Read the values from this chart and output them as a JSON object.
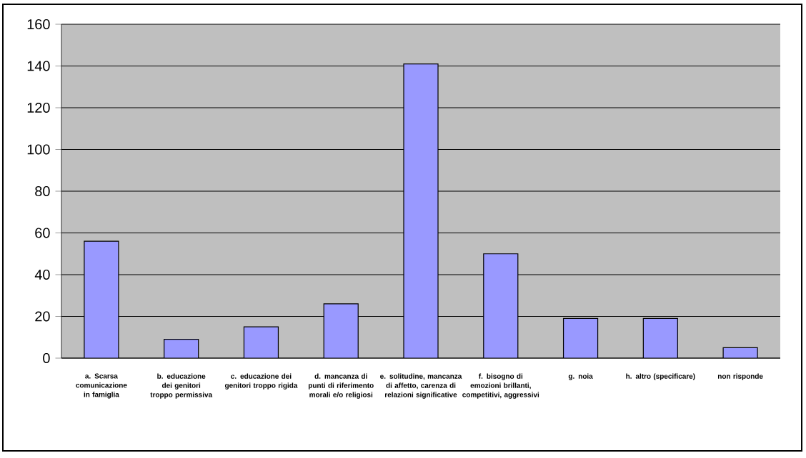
{
  "chart_data": {
    "type": "bar",
    "categories": [
      "a. Scarsa comunicazione in famiglia",
      "b. educazione dei genitori troppo permissiva",
      "c. educazione dei genitori troppo rigida",
      "d. mancanza di punti di riferimento morali e/o religiosi",
      "e. solitudine, mancanza di affetto, carenza di relazioni significative",
      "f. bisogno di emozioni brillanti, competitivi, aggressivi",
      "g. noia",
      "h. altro (specificare)",
      "non risponde"
    ],
    "values": [
      56,
      9,
      15,
      26,
      141,
      50,
      19,
      19,
      5
    ],
    "color": "#9999ff",
    "ylim": [
      0,
      160
    ],
    "yticks": [
      0,
      20,
      40,
      60,
      80,
      100,
      120,
      140,
      160
    ],
    "grid": "y"
  }
}
